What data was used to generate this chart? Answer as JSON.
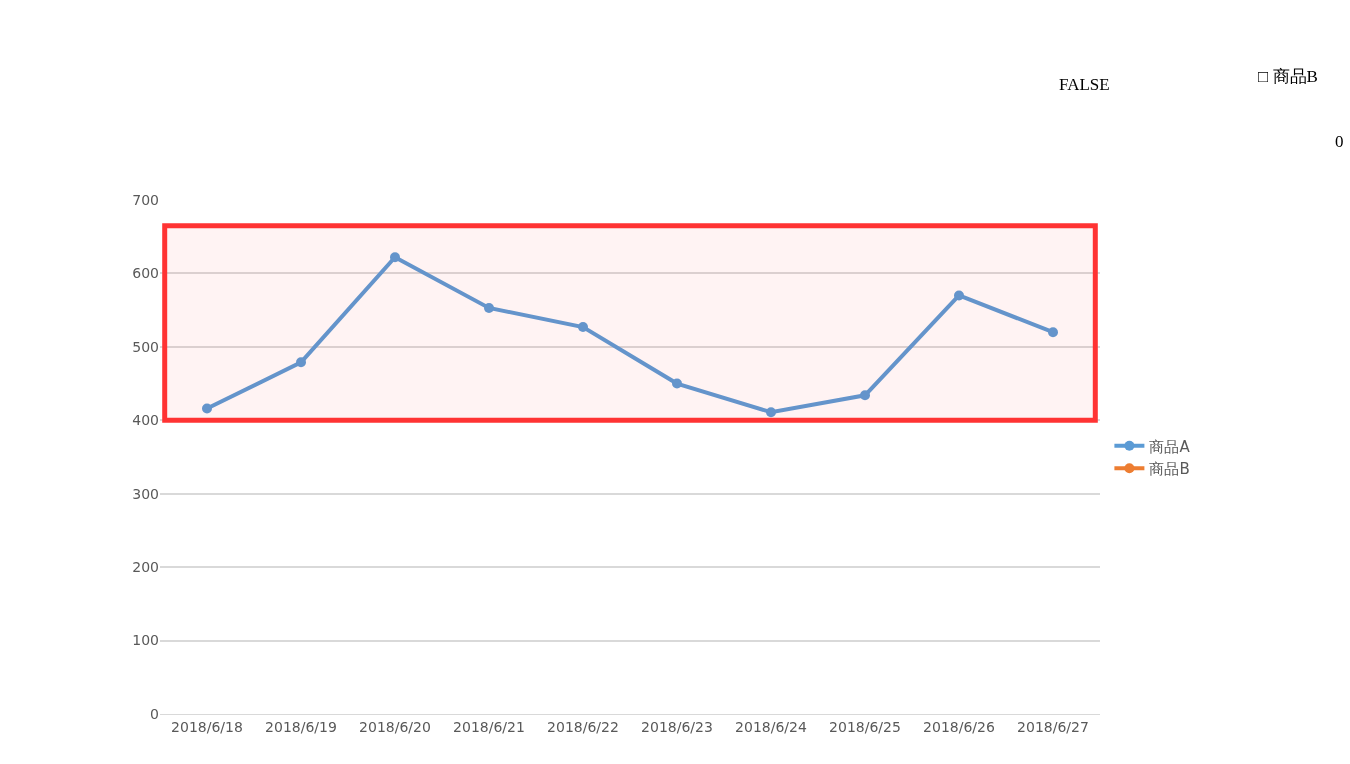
{
  "chart_data": {
    "type": "line",
    "categories": [
      "2018/6/18",
      "2018/6/19",
      "2018/6/20",
      "2018/6/21",
      "2018/6/22",
      "2018/6/23",
      "2018/6/24",
      "2018/6/25",
      "2018/6/26",
      "2018/6/27"
    ],
    "series": [
      {
        "name": "商品A",
        "color": "#5b9bd5",
        "values": [
          416,
          479,
          622,
          553,
          527,
          450,
          411,
          434,
          570,
          520
        ]
      },
      {
        "name": "商品B",
        "color": "#ed7d31",
        "values": [
          null,
          null,
          null,
          null,
          null,
          null,
          null,
          null,
          null,
          null
        ]
      }
    ],
    "ylim": [
      0,
      700
    ],
    "yticks": [
      0,
      100,
      200,
      300,
      400,
      500,
      600,
      700
    ],
    "grid": "y",
    "legend": "right",
    "marker": "circle",
    "line_style": "solid",
    "bands": [
      {
        "axis": "y",
        "from": 400,
        "to": 665,
        "color": "#ff3333"
      }
    ],
    "annotations": [
      "FALSE",
      "□ 商品B",
      "0"
    ]
  }
}
